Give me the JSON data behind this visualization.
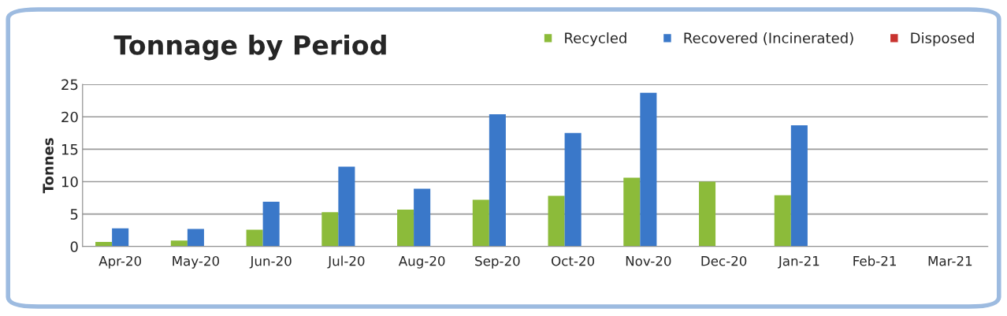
{
  "chart_data": {
    "type": "bar",
    "title": "Tonnage by Period",
    "ylabel": "Tonnes",
    "categories": [
      "Apr-20",
      "May-20",
      "Jun-20",
      "Jul-20",
      "Aug-20",
      "Sep-20",
      "Oct-20",
      "Nov-20",
      "Dec-20",
      "Jan-21",
      "Feb-21",
      "Mar-21"
    ],
    "series": [
      {
        "name": "Recycled",
        "color": "#8cbb3a",
        "values": [
          0.7,
          0.9,
          2.6,
          5.3,
          5.7,
          7.2,
          7.8,
          10.6,
          10.0,
          7.9,
          null,
          null
        ]
      },
      {
        "name": "Recovered (Incinerated)",
        "color": "#3a78c9",
        "values": [
          2.8,
          2.7,
          6.9,
          12.3,
          8.9,
          20.4,
          17.5,
          23.7,
          0,
          18.7,
          null,
          null
        ]
      },
      {
        "name": "Disposed",
        "color": "#c8332f",
        "values": [
          0,
          0,
          0,
          0,
          0,
          0,
          0,
          0,
          0,
          0,
          null,
          null
        ]
      }
    ],
    "ylim": [
      0,
      25
    ],
    "yticks": [
      0,
      5,
      10,
      15,
      20,
      25
    ],
    "grid": "y",
    "legend": "top right"
  }
}
